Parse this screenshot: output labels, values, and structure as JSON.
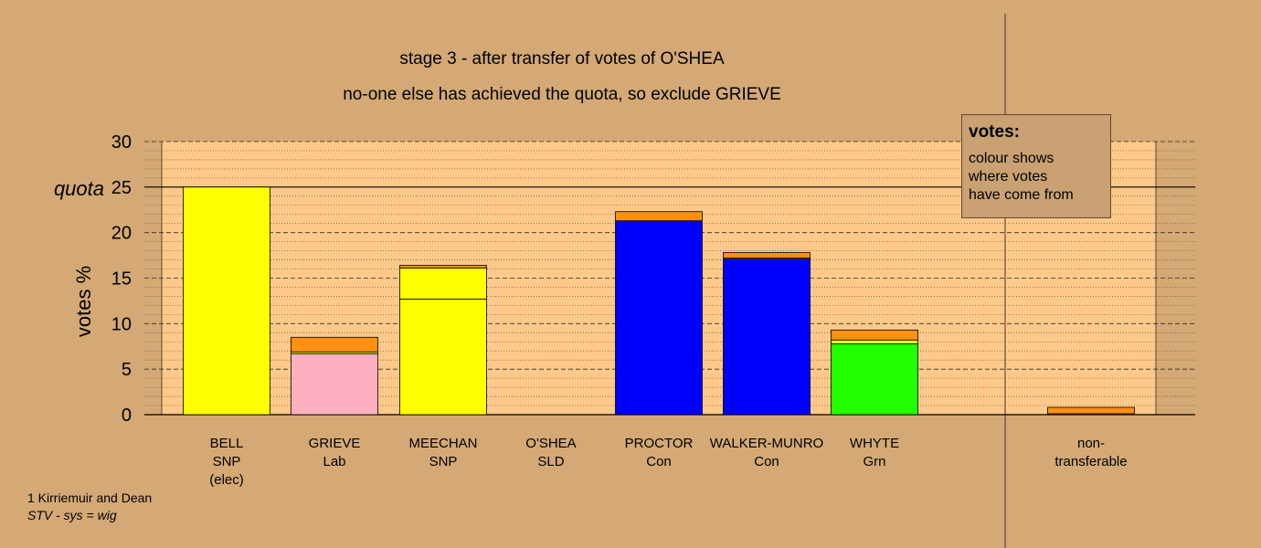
{
  "title": "stage 3 - after transfer of votes of O'SHEA",
  "subtitle": "no-one else has achieved the quota, so exclude GRIEVE",
  "legend": {
    "heading": "votes:",
    "lines": [
      "colour shows",
      "where votes",
      "have come from"
    ]
  },
  "footer": {
    "line1": "1 Kirriemuir and Dean",
    "line2": "STV - sys = wig"
  },
  "colors": {
    "background": "#d4a976",
    "plot_area": "#fcc98a",
    "SNP": "#ffff00",
    "Lab": "#ffb0c0",
    "Con": "#0000ff",
    "Grn": "#22ff00",
    "transfer_OSHEA": "#ff9010"
  },
  "chart_data": {
    "type": "bar",
    "stacked": true,
    "ylabel": "votes %",
    "ylim": [
      0,
      30
    ],
    "yticks": [
      0,
      5,
      10,
      15,
      20,
      25,
      30
    ],
    "quota": 25,
    "quota_label": "quota",
    "grid": true,
    "categories": [
      {
        "name": "BELL",
        "party": "SNP",
        "note": "(elec)"
      },
      {
        "name": "GRIEVE",
        "party": "Lab",
        "note": ""
      },
      {
        "name": "MEECHAN",
        "party": "SNP",
        "note": ""
      },
      {
        "name": "O'SHEA",
        "party": "SLD",
        "note": ""
      },
      {
        "name": "PROCTOR",
        "party": "Con",
        "note": ""
      },
      {
        "name": "WALKER-MUNRO",
        "party": "Con",
        "note": ""
      },
      {
        "name": "WHYTE",
        "party": "Grn",
        "note": ""
      },
      {
        "name": "non-",
        "party": "transferable",
        "note": ""
      }
    ],
    "bars": [
      {
        "segments": [
          {
            "from": "SNP",
            "value": 25.0
          }
        ]
      },
      {
        "segments": [
          {
            "from": "Lab",
            "value": 6.7
          },
          {
            "from": "SNP",
            "value": 0.2
          },
          {
            "from": "O'SHEA",
            "value": 1.6
          }
        ]
      },
      {
        "segments": [
          {
            "from": "SNP",
            "value": 12.7
          },
          {
            "from": "SNP surplus",
            "value": 3.4
          },
          {
            "from": "O'SHEA",
            "value": 0.3
          }
        ]
      },
      {
        "segments": []
      },
      {
        "segments": [
          {
            "from": "Con",
            "value": 21.3
          },
          {
            "from": "O'SHEA",
            "value": 1.0
          }
        ]
      },
      {
        "segments": [
          {
            "from": "Con",
            "value": 17.1
          },
          {
            "from": "SNP",
            "value": 0.1
          },
          {
            "from": "O'SHEA",
            "value": 0.6
          }
        ]
      },
      {
        "segments": [
          {
            "from": "Grn",
            "value": 7.8
          },
          {
            "from": "SNP",
            "value": 0.4
          },
          {
            "from": "O'SHEA",
            "value": 1.1
          }
        ]
      },
      {
        "segments": [
          {
            "from": "SNP",
            "value": 0.1
          },
          {
            "from": "O'SHEA",
            "value": 0.7
          }
        ]
      }
    ]
  }
}
